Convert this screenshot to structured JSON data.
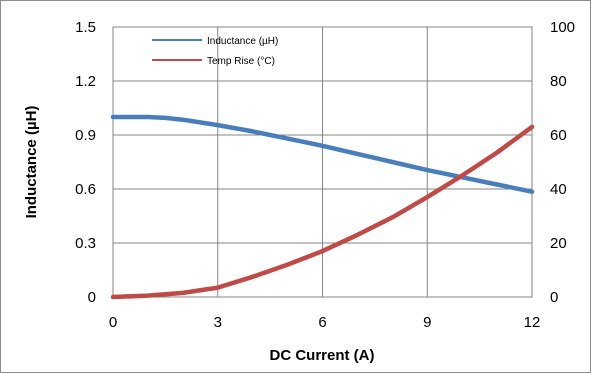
{
  "chart_data": {
    "type": "line",
    "title": "",
    "xlabel": "DC Current (A)",
    "ylabel": "Inductance (µH)",
    "y2label": "",
    "xlim": [
      0,
      12
    ],
    "ylim": [
      0,
      1.5
    ],
    "y2lim": [
      0,
      100
    ],
    "x_ticks": [
      "0",
      "3",
      "6",
      "9",
      "12"
    ],
    "y_ticks": [
      "0",
      "0.3",
      "0.6",
      "0.9",
      "1.2",
      "1.5"
    ],
    "y2_ticks": [
      "0",
      "20",
      "40",
      "60",
      "80",
      "100"
    ],
    "grid": true,
    "legend_position": "top-left",
    "series": [
      {
        "name": "Inductance (µH)",
        "axis": "left",
        "color": "#4a7ebb",
        "x": [
          0,
          0.5,
          1,
          1.5,
          2,
          3,
          4,
          5,
          6,
          7,
          8,
          9,
          10,
          11,
          12
        ],
        "y": [
          1.0,
          1.0,
          1.0,
          0.995,
          0.985,
          0.955,
          0.92,
          0.88,
          0.84,
          0.795,
          0.75,
          0.705,
          0.665,
          0.625,
          0.585
        ]
      },
      {
        "name": "Temp Rise (°C)",
        "axis": "right",
        "color": "#be4b48",
        "x": [
          0,
          1,
          2,
          3,
          4,
          5,
          6,
          7,
          8,
          9,
          10,
          11,
          12
        ],
        "y": [
          0,
          0.5,
          1.5,
          3.5,
          7.5,
          12,
          17,
          23,
          29.5,
          37,
          45,
          53.5,
          63
        ]
      }
    ]
  }
}
